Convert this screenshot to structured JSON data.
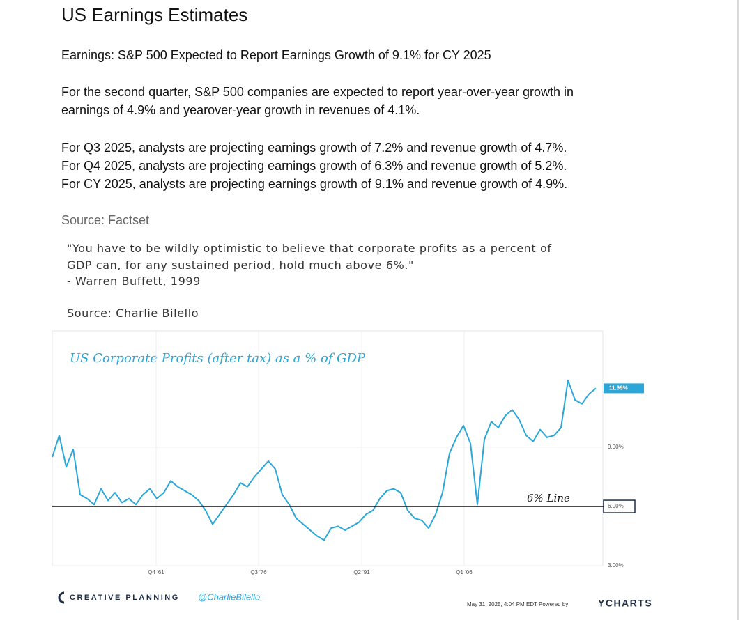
{
  "header": {
    "title": "US Earnings Estimates"
  },
  "subtitle": "Earnings: S&P 500 Expected to Report Earnings Growth of 9.1% for CY 2025",
  "paragraphs": [
    [
      "For the second quarter, S&P 500 companies are expected to report year-over-year growth in",
      "earnings of 4.9% and yearover-year growth in revenues of 4.1%."
    ],
    [
      "For Q3 2025, analysts are projecting earnings growth of 7.2% and revenue growth of 4.7%.",
      "For Q4 2025, analysts are projecting earnings growth of 6.3% and revenue growth of 5.2%.",
      "For CY 2025, analysts are projecting earnings growth of 9.1% and revenue growth of 4.9%."
    ]
  ],
  "source_1": "Source: Factset",
  "quote": [
    "\"You have to be wildly optimistic to believe that corporate profits as a percent of",
    "GDP can, for any sustained period, hold much above 6%.\"",
    "- Warren Buffett, 1999"
  ],
  "source_2": "Source: Charlie Bilello",
  "chart_data": {
    "type": "line",
    "title": "US Corporate Profits (after tax) as a % of GDP",
    "color": "#2aa7d8",
    "x": [
      1947,
      1948,
      1949,
      1950,
      1951,
      1952,
      1953,
      1954,
      1955,
      1956,
      1957,
      1958,
      1959,
      1960,
      1961,
      1962,
      1963,
      1964,
      1965,
      1966,
      1967,
      1968,
      1969,
      1970,
      1971,
      1972,
      1973,
      1974,
      1975,
      1976,
      1977,
      1978,
      1979,
      1980,
      1981,
      1982,
      1983,
      1984,
      1985,
      1986,
      1987,
      1988,
      1989,
      1990,
      1991,
      1992,
      1993,
      1994,
      1995,
      1996,
      1997,
      1998,
      1999,
      2000,
      2001,
      2002,
      2003,
      2004,
      2005,
      2006,
      2007,
      2008,
      2009,
      2010,
      2011,
      2012,
      2013,
      2014,
      2015,
      2016,
      2017,
      2018,
      2019,
      2020,
      2021,
      2022,
      2023,
      2024,
      2025
    ],
    "values": [
      8.5,
      9.6,
      8.0,
      8.9,
      6.6,
      6.4,
      6.1,
      6.9,
      6.3,
      6.7,
      6.2,
      6.4,
      6.1,
      6.6,
      6.9,
      6.4,
      6.7,
      7.3,
      7.0,
      6.8,
      6.6,
      6.3,
      5.8,
      5.1,
      5.6,
      6.1,
      6.6,
      7.2,
      7.0,
      7.5,
      7.9,
      8.3,
      7.9,
      6.6,
      6.1,
      5.4,
      5.1,
      4.8,
      4.5,
      4.3,
      4.9,
      5.0,
      4.8,
      5.0,
      5.2,
      5.6,
      5.8,
      6.4,
      6.8,
      6.9,
      6.7,
      5.8,
      5.4,
      5.3,
      4.9,
      5.6,
      6.7,
      8.7,
      9.5,
      10.1,
      9.2,
      6.1,
      9.4,
      10.3,
      10.0,
      10.6,
      10.9,
      10.4,
      9.6,
      9.3,
      9.9,
      9.5,
      9.6,
      10.0,
      12.4,
      11.4,
      11.2,
      11.7,
      11.99
    ],
    "xlim": [
      1947,
      2026
    ],
    "ylim": [
      3,
      14.9
    ],
    "xticks": [
      {
        "value": 1961.9,
        "label": "Q4 '61"
      },
      {
        "value": 1976.6,
        "label": "Q3 '76"
      },
      {
        "value": 1991.4,
        "label": "Q2 '91"
      },
      {
        "value": 2006.1,
        "label": "Q1 '06"
      }
    ],
    "yticks": [
      {
        "value": 3,
        "label": "3.00%"
      },
      {
        "value": 6,
        "label": "6.00%"
      },
      {
        "value": 9,
        "label": "9.00%"
      }
    ],
    "grid": true,
    "reference_line": {
      "value": 6,
      "label": "6% Line"
    },
    "last_label": {
      "value": 11.99,
      "label": "11.99%"
    }
  },
  "footer": {
    "brand": "CREATIVE PLANNING",
    "handle": "@CharlieBilello",
    "stamp": "May 31, 2025, 4:04 PM EDT Powered by",
    "provider": "YCHARTS"
  }
}
